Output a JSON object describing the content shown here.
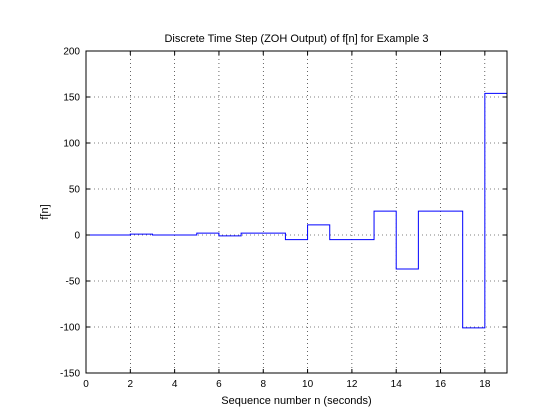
{
  "chart_data": {
    "type": "line",
    "step": "zoh",
    "title": "Discrete Time Step (ZOH Output) of f[n] for Example 3",
    "xlabel": "Sequence number n (seconds)",
    "ylabel": "f[n]",
    "xlim": [
      0,
      19
    ],
    "ylim": [
      -150,
      200
    ],
    "xticks": [
      0,
      2,
      4,
      6,
      8,
      10,
      12,
      14,
      16,
      18
    ],
    "yticks": [
      -150,
      -100,
      -50,
      0,
      50,
      100,
      150,
      200
    ],
    "grid": true,
    "line_color": "#0000ff",
    "series": [
      {
        "x": [
          0,
          1,
          2,
          3,
          4,
          5,
          6,
          7,
          8,
          9,
          10,
          11,
          12,
          13,
          14,
          15,
          16,
          17,
          18
        ],
        "values": [
          0,
          0,
          1,
          0,
          0,
          2,
          -1,
          2,
          2,
          -5,
          11,
          -5,
          -5,
          26,
          -37,
          26,
          26,
          -101,
          154
        ]
      }
    ]
  }
}
